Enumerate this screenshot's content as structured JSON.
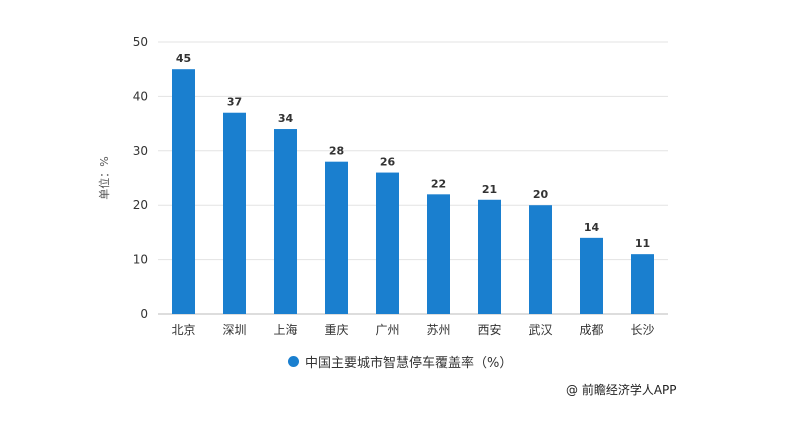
{
  "chart_data": {
    "type": "bar",
    "categories": [
      "北京",
      "深圳",
      "上海",
      "重庆",
      "广州",
      "苏州",
      "西安",
      "武汉",
      "成都",
      "长沙"
    ],
    "series": [
      {
        "name": "中国主要城市智慧停车覆盖率（%）",
        "values": [
          45,
          37,
          34,
          28,
          26,
          22,
          21,
          20,
          14,
          11
        ]
      }
    ],
    "title": "",
    "xlabel": "",
    "ylabel": "单位：%",
    "ylim": [
      0,
      50
    ],
    "yticks": [
      0,
      10,
      20,
      30,
      40,
      50
    ],
    "grid": true,
    "legend_position": "bottom",
    "bar_color": "#1a7fcf",
    "grid_color": "#e3e3e3"
  },
  "credit": "@ 前瞻经济学人APP"
}
